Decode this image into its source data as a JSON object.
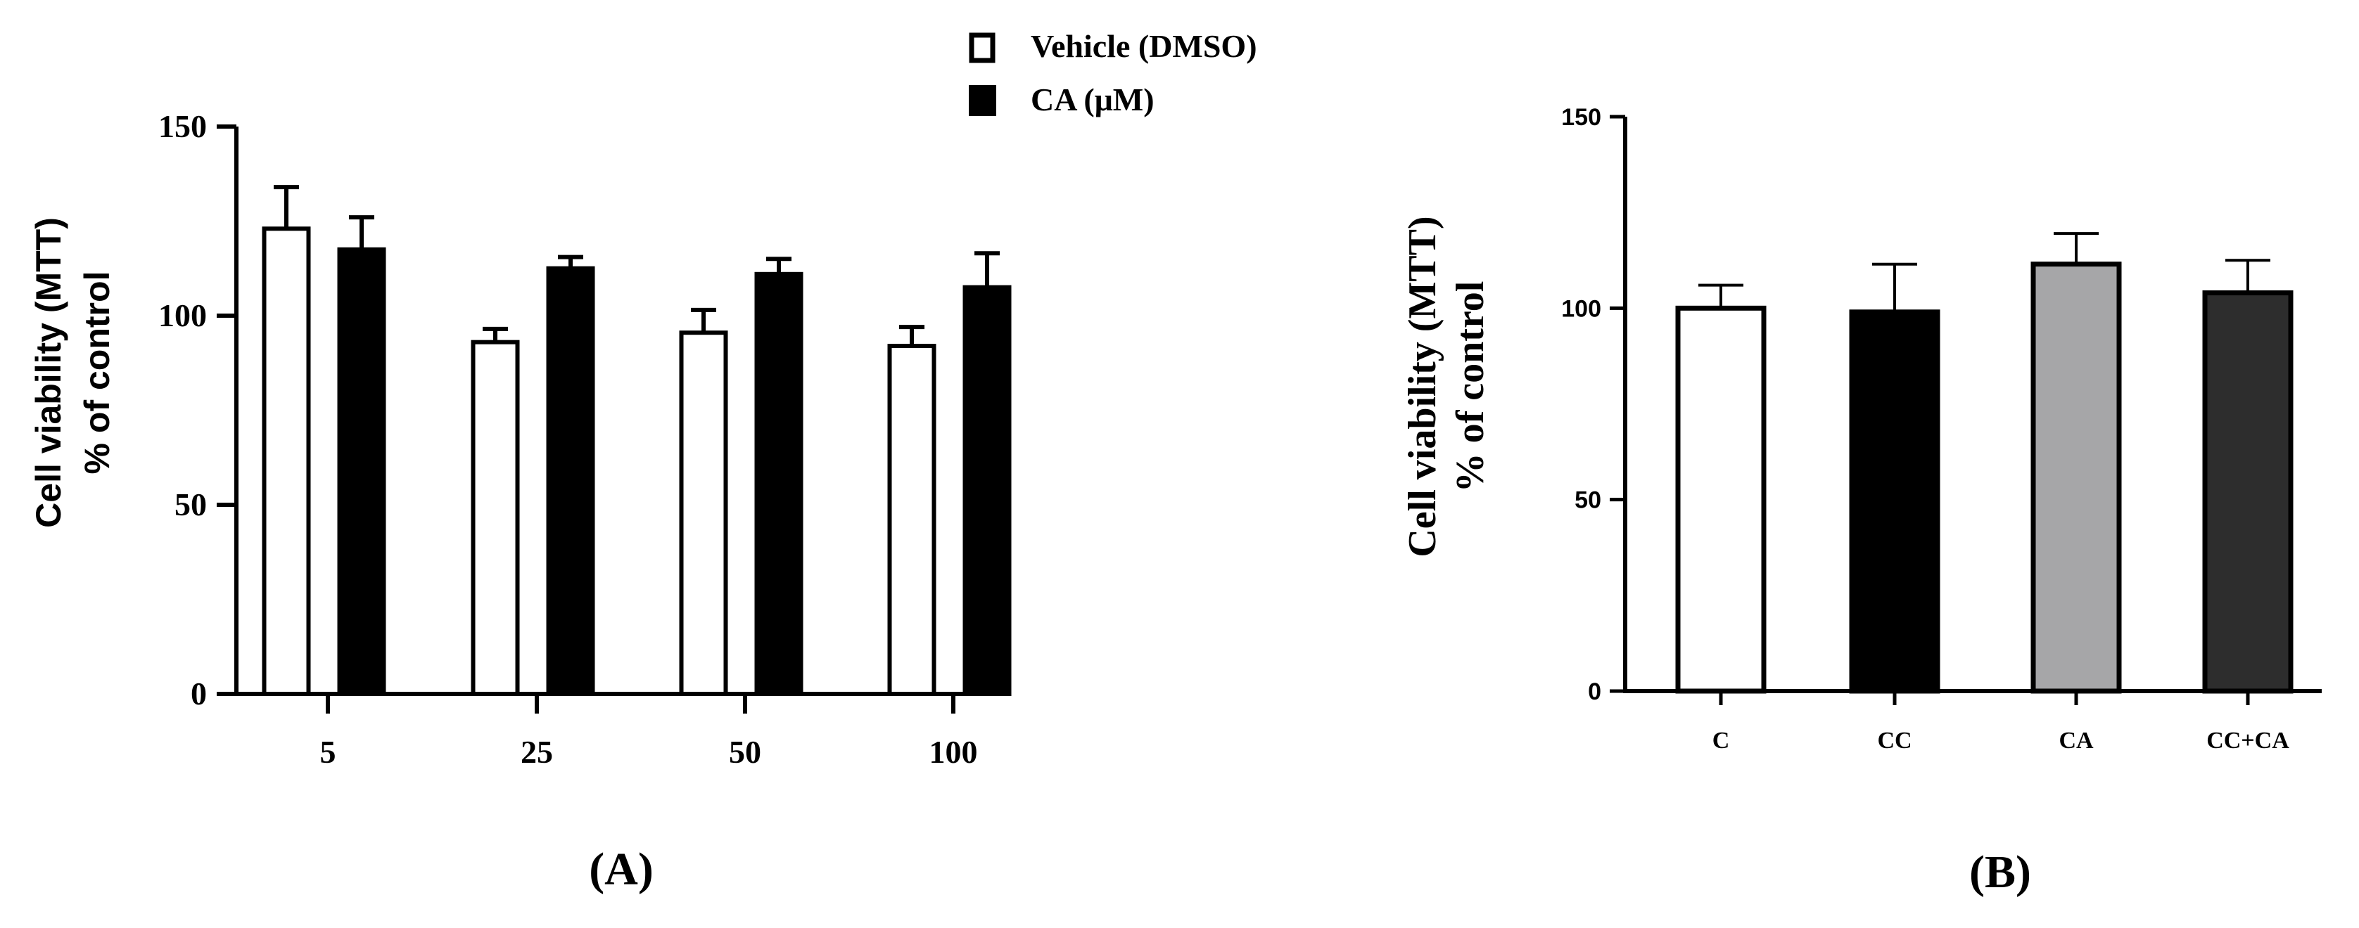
{
  "chart_data": [
    {
      "type": "bar",
      "panel_label": "(A)",
      "categories": [
        "5",
        "25",
        "50",
        "100"
      ],
      "series": [
        {
          "name": "Vehicle (DMSO)",
          "values": [
            123,
            93,
            95.5,
            92
          ],
          "errors": [
            11,
            3.5,
            6,
            5
          ],
          "color": "#ffffff",
          "edge": "#000000"
        },
        {
          "name": "CA (μM)",
          "values": [
            117.5,
            112.5,
            111,
            107.5
          ],
          "errors": [
            8.5,
            3,
            4,
            9
          ],
          "color": "#000000",
          "edge": "#000000"
        }
      ],
      "ylabel_line1": "Cell viability (MTT)",
      "ylabel_line2": "% of control",
      "xlabel": "",
      "ylim": [
        0,
        150
      ],
      "yticks": [
        "0",
        "50",
        "100",
        "150"
      ],
      "legend_position": "top-center"
    },
    {
      "type": "bar",
      "panel_label": "(B)",
      "categories": [
        "C",
        "CC",
        "CA",
        "CC+CA"
      ],
      "values": [
        100,
        99,
        111.5,
        104
      ],
      "errors": [
        6,
        12.5,
        8,
        8.5
      ],
      "colors": [
        "#ffffff",
        "#000000",
        "#a6a6a8",
        "#2d2d2d"
      ],
      "ylabel_line1": "Cell viability (MTT)",
      "ylabel_line2": "% of control",
      "xlabel": "",
      "ylim": [
        0,
        150
      ],
      "yticks": [
        "0",
        "50",
        "100",
        "150"
      ]
    }
  ]
}
